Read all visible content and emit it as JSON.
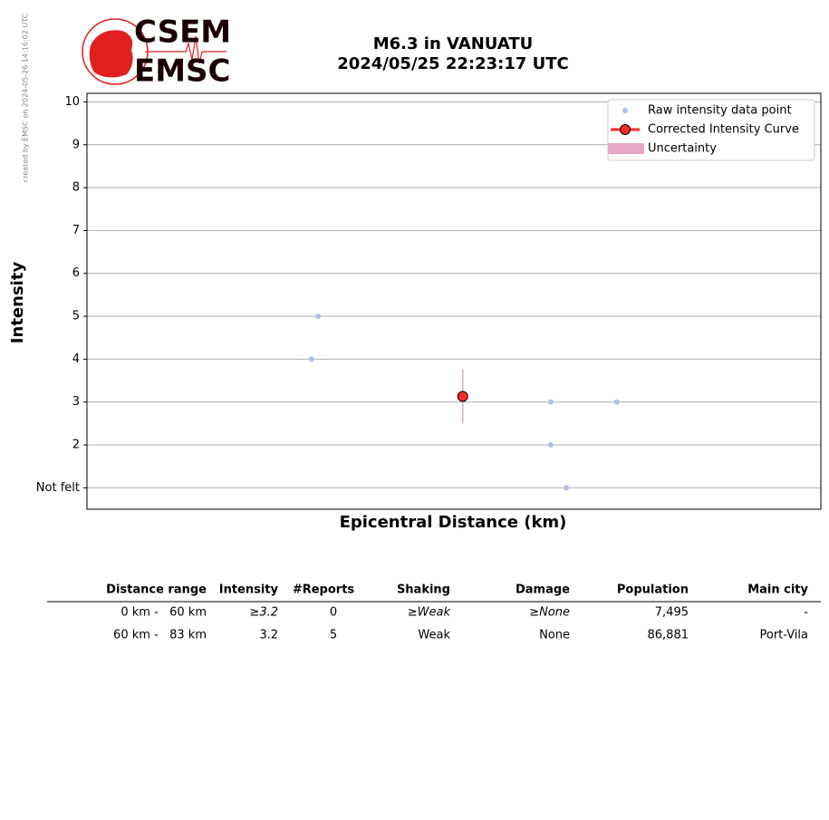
{
  "side_note": "created by EMSC on 2024-05-26 14:16:02 UTC",
  "logo": {
    "top": "CSEM",
    "bottom": "EMSC"
  },
  "chart_data": {
    "type": "scatter",
    "title": "M6.3 in VANUATU",
    "subtitle": "2024/05/25 22:23:17 UTC",
    "x_label": "Epicentral Distance (km)",
    "y_label": "Intensity",
    "xlim": [
      0,
      100
    ],
    "ylim": [
      0.5,
      10.2
    ],
    "yticks": [
      {
        "value": 1,
        "label": "Not felt"
      },
      2,
      3,
      4,
      5,
      6,
      7,
      8,
      9,
      10
    ],
    "grid": true,
    "legend": "upper right",
    "series": [
      {
        "name": "Raw intensity data point",
        "color": "#aebfe6",
        "x": [
          31.5,
          30.6,
          63.2,
          72.2,
          63.2,
          65.3
        ],
        "values": [
          5,
          4,
          3,
          3,
          2,
          1
        ]
      },
      {
        "name": "Corrected Intensity Curve",
        "color": "#ff2a2a",
        "x": [
          51.2
        ],
        "values": [
          3.13
        ],
        "errors": [
          0.63
        ]
      }
    ],
    "uncertainty": {
      "name": "Uncertainty",
      "color": "#e6a8c4"
    }
  },
  "table": {
    "columns": [
      "Distance range",
      "Intensity",
      "#Reports",
      "Shaking",
      "Damage",
      "Population",
      "Main city"
    ],
    "rows": [
      [
        "0 km -   60 km",
        "≥3.2",
        "0",
        "≥Weak",
        "≥None",
        "7,495",
        "-"
      ],
      [
        "60 km -   83 km",
        "3.2",
        "5",
        "Weak",
        "None",
        "86,881",
        "Port-Vila"
      ]
    ]
  }
}
